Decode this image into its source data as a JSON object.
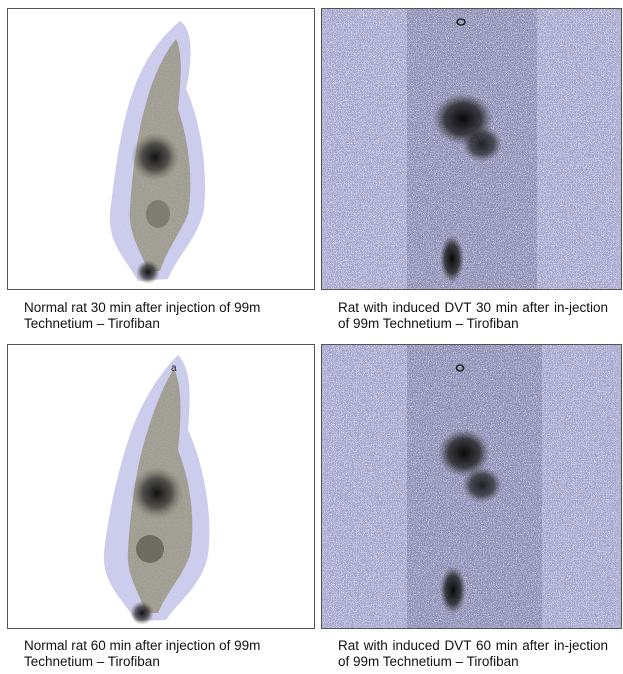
{
  "panels": [
    {
      "caption": "Normal rat 30 min after injection of 99m Technetium – Tirofiban"
    },
    {
      "caption": "Rat with induced DVT 30 min after in-jection of 99m Technetium – Tirofiban"
    },
    {
      "caption": "Normal rat 60 min after injection of 99m Technetium – Tirofiban"
    },
    {
      "caption": "Rat with induced DVT 60 min after in-jection of 99m Technetium – Tirofiban"
    }
  ]
}
